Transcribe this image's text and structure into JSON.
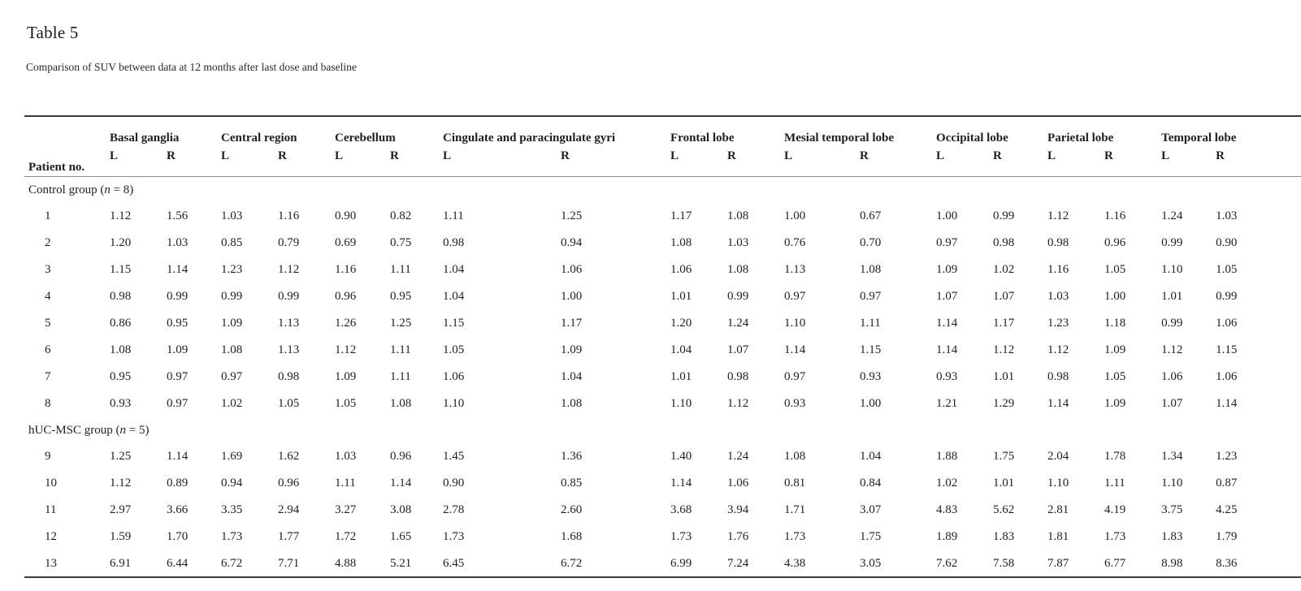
{
  "title": "Table 5",
  "caption": "Comparison of SUV between data at 12 months after last dose and baseline",
  "text_color": "#1f1f1f",
  "rule_color_heavy": "#3a3a3a",
  "rule_color_light": "#8c8c8c",
  "table": {
    "patient_col_header": "Patient no.",
    "side_headers": [
      "L",
      "R"
    ],
    "regions": [
      "Basal ganglia",
      "Central region",
      "Cerebellum",
      "Cingulate and paracingulate gyri",
      "Frontal lobe",
      "Mesial temporal lobe",
      "Occipital lobe",
      "Parietal lobe",
      "Temporal lobe"
    ],
    "groups": [
      {
        "label_prefix": "Control group (",
        "label_n": "n",
        "label_suffix": " = 8)",
        "rows": [
          {
            "patient": "1",
            "values": [
              "1.12",
              "1.56",
              "1.03",
              "1.16",
              "0.90",
              "0.82",
              "1.11",
              "1.25",
              "1.17",
              "1.08",
              "1.00",
              "0.67",
              "1.00",
              "0.99",
              "1.12",
              "1.16",
              "1.24",
              "1.03"
            ]
          },
          {
            "patient": "2",
            "values": [
              "1.20",
              "1.03",
              "0.85",
              "0.79",
              "0.69",
              "0.75",
              "0.98",
              "0.94",
              "1.08",
              "1.03",
              "0.76",
              "0.70",
              "0.97",
              "0.98",
              "0.98",
              "0.96",
              "0.99",
              "0.90"
            ]
          },
          {
            "patient": "3",
            "values": [
              "1.15",
              "1.14",
              "1.23",
              "1.12",
              "1.16",
              "1.11",
              "1.04",
              "1.06",
              "1.06",
              "1.08",
              "1.13",
              "1.08",
              "1.09",
              "1.02",
              "1.16",
              "1.05",
              "1.10",
              "1.05"
            ]
          },
          {
            "patient": "4",
            "values": [
              "0.98",
              "0.99",
              "0.99",
              "0.99",
              "0.96",
              "0.95",
              "1.04",
              "1.00",
              "1.01",
              "0.99",
              "0.97",
              "0.97",
              "1.07",
              "1.07",
              "1.03",
              "1.00",
              "1.01",
              "0.99"
            ]
          },
          {
            "patient": "5",
            "values": [
              "0.86",
              "0.95",
              "1.09",
              "1.13",
              "1.26",
              "1.25",
              "1.15",
              "1.17",
              "1.20",
              "1.24",
              "1.10",
              "1.11",
              "1.14",
              "1.17",
              "1.23",
              "1.18",
              "0.99",
              "1.06"
            ]
          },
          {
            "patient": "6",
            "values": [
              "1.08",
              "1.09",
              "1.08",
              "1.13",
              "1.12",
              "1.11",
              "1.05",
              "1.09",
              "1.04",
              "1.07",
              "1.14",
              "1.15",
              "1.14",
              "1.12",
              "1.12",
              "1.09",
              "1.12",
              "1.15"
            ]
          },
          {
            "patient": "7",
            "values": [
              "0.95",
              "0.97",
              "0.97",
              "0.98",
              "1.09",
              "1.11",
              "1.06",
              "1.04",
              "1.01",
              "0.98",
              "0.97",
              "0.93",
              "0.93",
              "1.01",
              "0.98",
              "1.05",
              "1.06",
              "1.06"
            ]
          },
          {
            "patient": "8",
            "values": [
              "0.93",
              "0.97",
              "1.02",
              "1.05",
              "1.05",
              "1.08",
              "1.10",
              "1.08",
              "1.10",
              "1.12",
              "0.93",
              "1.00",
              "1.21",
              "1.29",
              "1.14",
              "1.09",
              "1.07",
              "1.14"
            ]
          }
        ]
      },
      {
        "label_prefix": "hUC-MSC group (",
        "label_n": "n",
        "label_suffix": " = 5)",
        "rows": [
          {
            "patient": "9",
            "values": [
              "1.25",
              "1.14",
              "1.69",
              "1.62",
              "1.03",
              "0.96",
              "1.45",
              "1.36",
              "1.40",
              "1.24",
              "1.08",
              "1.04",
              "1.88",
              "1.75",
              "2.04",
              "1.78",
              "1.34",
              "1.23"
            ]
          },
          {
            "patient": "10",
            "values": [
              "1.12",
              "0.89",
              "0.94",
              "0.96",
              "1.11",
              "1.14",
              "0.90",
              "0.85",
              "1.14",
              "1.06",
              "0.81",
              "0.84",
              "1.02",
              "1.01",
              "1.10",
              "1.11",
              "1.10",
              "0.87"
            ]
          },
          {
            "patient": "11",
            "values": [
              "2.97",
              "3.66",
              "3.35",
              "2.94",
              "3.27",
              "3.08",
              "2.78",
              "2.60",
              "3.68",
              "3.94",
              "1.71",
              "3.07",
              "4.83",
              "5.62",
              "2.81",
              "4.19",
              "3.75",
              "4.25"
            ]
          },
          {
            "patient": "12",
            "values": [
              "1.59",
              "1.70",
              "1.73",
              "1.77",
              "1.72",
              "1.65",
              "1.73",
              "1.68",
              "1.73",
              "1.76",
              "1.73",
              "1.75",
              "1.89",
              "1.83",
              "1.81",
              "1.73",
              "1.83",
              "1.79"
            ]
          },
          {
            "patient": "13",
            "values": [
              "6.91",
              "6.44",
              "6.72",
              "7.71",
              "4.88",
              "5.21",
              "6.45",
              "6.72",
              "6.99",
              "7.24",
              "4.38",
              "3.05",
              "7.62",
              "7.58",
              "7.87",
              "6.77",
              "8.98",
              "8.36"
            ]
          }
        ]
      }
    ]
  }
}
